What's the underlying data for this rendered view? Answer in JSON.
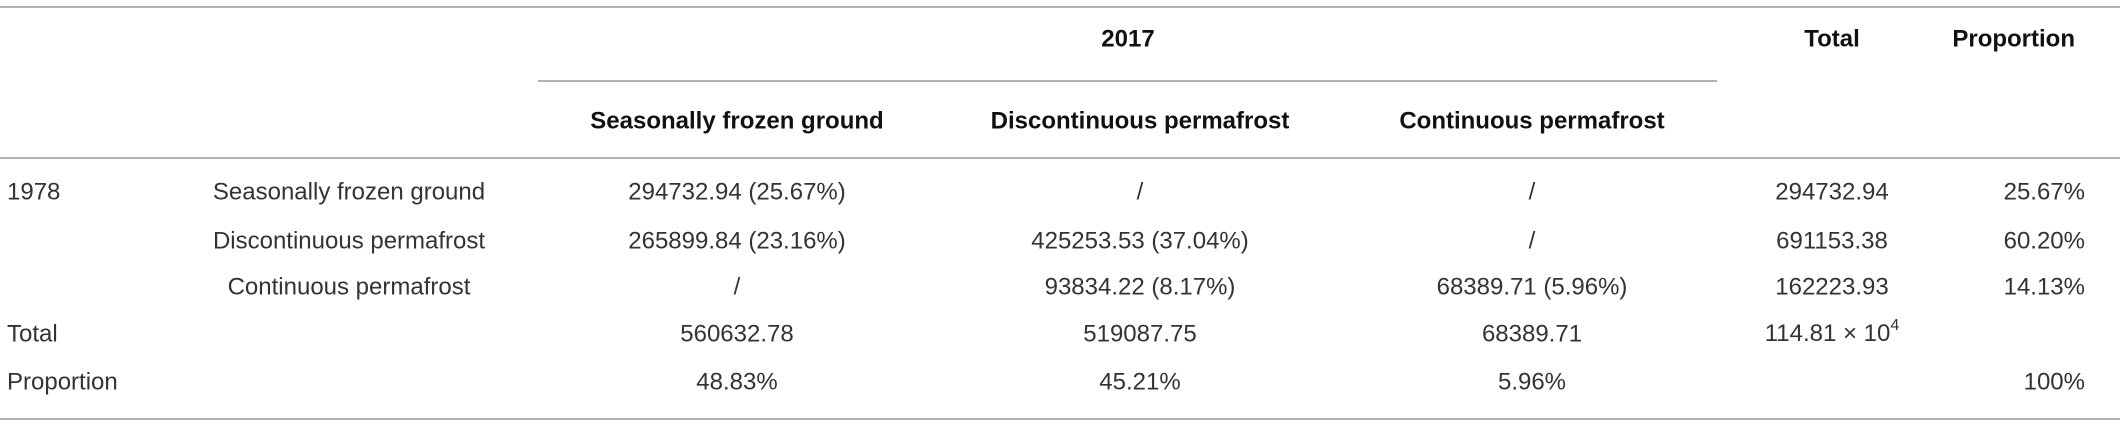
{
  "table": {
    "header": {
      "group": "2017",
      "columns": [
        "Seasonally frozen ground",
        "Discontinuous permafrost",
        "Continuous permafrost"
      ],
      "total": "Total",
      "proportion": "Proportion"
    },
    "rows": [
      {
        "year": "1978",
        "label": "Seasonally frozen ground",
        "cells": [
          "294732.94 (25.67%)",
          "/",
          "/"
        ],
        "total": "294732.94",
        "proportion": "25.67%"
      },
      {
        "label": "Discontinuous permafrost",
        "cells": [
          "265899.84 (23.16%)",
          "425253.53 (37.04%)",
          "/"
        ],
        "total": "691153.38",
        "proportion": "60.20%"
      },
      {
        "label": "Continuous permafrost",
        "cells": [
          "/",
          "93834.22 (8.17%)",
          "68389.71 (5.96%)"
        ],
        "total": "162223.93",
        "proportion": "14.13%"
      },
      {
        "year": "Total",
        "cells": [
          "560632.78",
          "519087.75",
          "68389.71"
        ],
        "total": {
          "text": "114.81 × 10",
          "sup": "4"
        }
      },
      {
        "year": "Proportion",
        "cells": [
          "48.83%",
          "45.21%",
          "5.96%"
        ],
        "proportion": "100%"
      }
    ]
  }
}
